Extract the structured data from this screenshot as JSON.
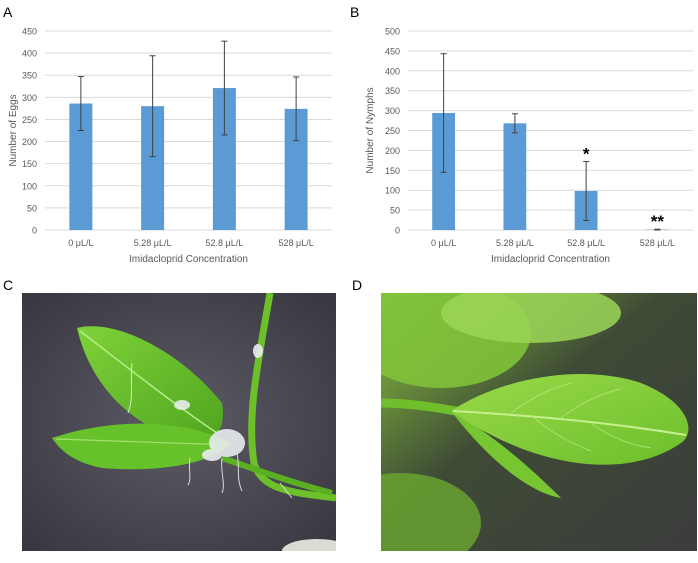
{
  "panels": {
    "a": "A",
    "b": "B",
    "c": "C",
    "d": "D"
  },
  "chart_data": [
    {
      "type": "bar",
      "title": "",
      "xlabel": "Imidacloprid Concentration",
      "ylabel": "Number of Eggs",
      "categories": [
        "0 μL/L",
        "5.28 μL/L",
        "52.8 μL/L",
        "528 μL/L"
      ],
      "values": [
        286,
        280,
        321,
        274
      ],
      "error": [
        61,
        114,
        106,
        72
      ],
      "annotations": [
        "",
        "",
        "",
        ""
      ],
      "ylim": [
        0,
        450
      ],
      "yticks": [
        0,
        50,
        100,
        150,
        200,
        250,
        300,
        350,
        400,
        450
      ],
      "grid": true,
      "color": "#5b9bd5"
    },
    {
      "type": "bar",
      "title": "",
      "xlabel": "Imidacloprid Concentration",
      "ylabel": "Number of Nymphs",
      "categories": [
        "0 μL/L",
        "5.28 μL/L",
        "52.8 μL/L",
        "528 μL/L"
      ],
      "values": [
        294,
        268,
        98,
        1
      ],
      "error": [
        149,
        24,
        74,
        1
      ],
      "annotations": [
        "",
        "",
        "*",
        "**"
      ],
      "ylim": [
        0,
        500
      ],
      "yticks": [
        0,
        50,
        100,
        150,
        200,
        250,
        300,
        350,
        400,
        450,
        500
      ],
      "grid": true,
      "color": "#5b9bd5"
    }
  ],
  "colors": {
    "bar": "#5b9bd5",
    "grid": "#d9d9d9",
    "axis_text": "#595959"
  }
}
